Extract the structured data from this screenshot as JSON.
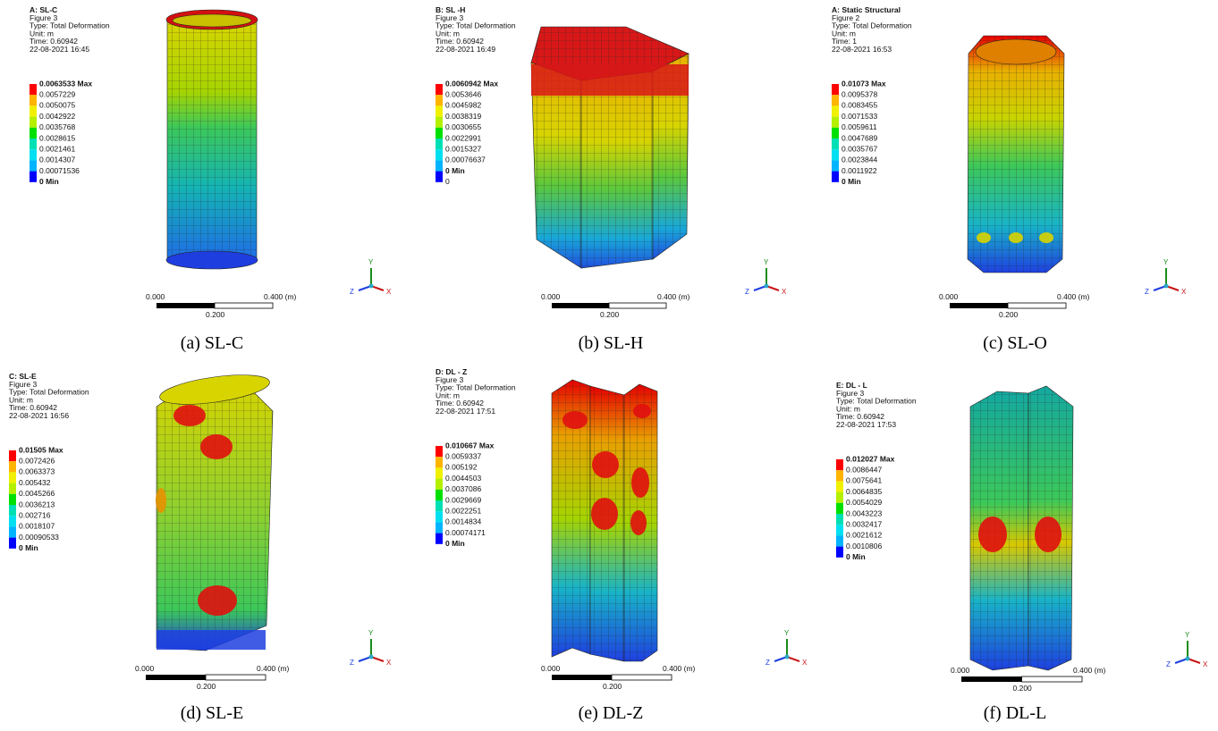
{
  "panels": [
    {
      "header": [
        "A: SL-C",
        "Figure 3",
        "Type: Total Deformation",
        "Unit: m",
        "Time: 0.60942",
        "22-08-2021 16:45"
      ],
      "legend": [
        "0.0063533 Max",
        "0.0057229",
        "0.0050075",
        "0.0042922",
        "0.0035768",
        "0.0028615",
        "0.0021461",
        "0.0014307",
        "0.00071536",
        "0 Min"
      ],
      "scale": {
        "start": "0.000",
        "end": "0.400 (m)",
        "mid": "0.200"
      },
      "caption": "(a) SL-C"
    },
    {
      "header": [
        "B: SL -H",
        "Figure 3",
        "Type: Total Deformation",
        "Unit: m",
        "Time: 0.60942",
        "22-08-2021 16:49"
      ],
      "legend": [
        "0.0060942 Max",
        "0.0053646",
        "0.0045982",
        "0.0038319",
        "0.0030655",
        "0.0022991",
        "0.0015327",
        "0.00076637",
        "0 Min",
        "0"
      ],
      "scale": {
        "start": "0.000",
        "end": "0.400 (m)",
        "mid": "0.200"
      },
      "caption": "(b) SL-H"
    },
    {
      "header": [
        "A: Static Structural",
        "Figure 2",
        "Type: Total Deformation",
        "Unit: m",
        "Time: 1",
        "22-08-2021 16:53"
      ],
      "legend": [
        "0.01073 Max",
        "0.0095378",
        "0.0083455",
        "0.0071533",
        "0.0059611",
        "0.0047689",
        "0.0035767",
        "0.0023844",
        "0.0011922",
        "0 Min"
      ],
      "scale": {
        "start": "0.000",
        "end": "0.400 (m)",
        "mid": "0.200"
      },
      "caption": "(c) SL-O"
    },
    {
      "header": [
        "C: SL-E",
        "Figure 3",
        "Type: Total Deformation",
        "Unit: m",
        "Time: 0.60942",
        "22-08-2021 16:56"
      ],
      "legend": [
        "0.01505 Max",
        "0.0072426",
        "0.0063373",
        "0.005432",
        "0.0045266",
        "0.0036213",
        "0.002716",
        "0.0018107",
        "0.00090533",
        "0 Min"
      ],
      "scale": {
        "start": "0.000",
        "end": "0.400 (m)",
        "mid": "0.200"
      },
      "caption": "(d) SL-E"
    },
    {
      "header": [
        "D: DL - Z",
        "Figure 3",
        "Type: Total Deformation",
        "Unit: m",
        "Time: 0.60942",
        "22-08-2021 17:51"
      ],
      "legend": [
        "0.010667 Max",
        "0.0059337",
        "0.005192",
        "0.0044503",
        "0.0037086",
        "0.0029669",
        "0.0022251",
        "0.0014834",
        "0.00074171",
        "0 Min"
      ],
      "scale": {
        "start": "0.000",
        "end": "0.400 (m)",
        "mid": "0.200"
      },
      "caption": "(e) DL-Z"
    },
    {
      "header": [
        "E: DL - L",
        "Figure 3",
        "Type: Total Deformation",
        "Unit: m",
        "Time: 0.60942",
        "22-08-2021 17:53"
      ],
      "legend": [
        "0.012027 Max",
        "0.0086447",
        "0.0075641",
        "0.0064835",
        "0.0054029",
        "0.0043223",
        "0.0032417",
        "0.0021612",
        "0.0010806",
        "0 Min"
      ],
      "scale": {
        "start": "0.000",
        "end": "0.400 (m)",
        "mid": "0.200"
      },
      "caption": "(f) DL-L"
    }
  ],
  "triad": {
    "y": "Y",
    "x": "X",
    "z": "Z"
  }
}
